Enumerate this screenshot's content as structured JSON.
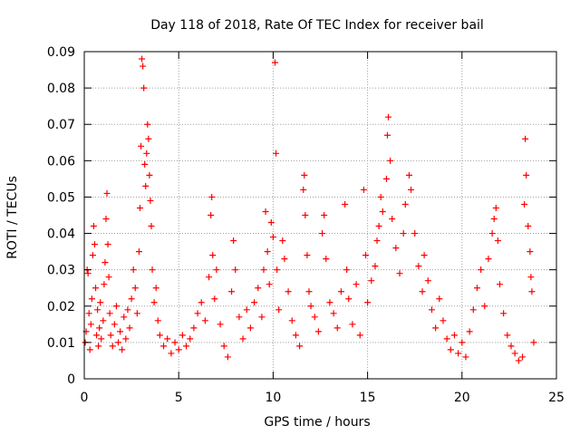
{
  "chart_data": {
    "type": "scatter",
    "title": "Day 118 of 2018, Rate Of TEC Index for receiver bail",
    "xlabel": "GPS time / hours",
    "ylabel": "ROTI / TECUs",
    "xlim": [
      0,
      25
    ],
    "ylim": [
      0,
      0.09
    ],
    "xticks": [
      0,
      5,
      10,
      15,
      20,
      25
    ],
    "xtick_labels": [
      "0",
      "5",
      "10",
      "15",
      "20",
      "25"
    ],
    "yticks": [
      0,
      0.01,
      0.02,
      0.03,
      0.04,
      0.05,
      0.06,
      0.07,
      0.08,
      0.09
    ],
    "ytick_labels": [
      "0",
      "0.01",
      "0.02",
      "0.03",
      "0.04",
      "0.05",
      "0.06",
      "0.07",
      "0.08",
      "0.09"
    ],
    "grid": true,
    "marker": "+",
    "color": "#ff0000",
    "series": [
      {
        "name": "ROTI",
        "points": [
          [
            0.05,
            0.01
          ],
          [
            0.1,
            0.013
          ],
          [
            0.15,
            0.03
          ],
          [
            0.2,
            0.029
          ],
          [
            0.25,
            0.018
          ],
          [
            0.3,
            0.008
          ],
          [
            0.35,
            0.015
          ],
          [
            0.4,
            0.022
          ],
          [
            0.45,
            0.034
          ],
          [
            0.5,
            0.042
          ],
          [
            0.55,
            0.037
          ],
          [
            0.6,
            0.025
          ],
          [
            0.65,
            0.012
          ],
          [
            0.7,
            0.019
          ],
          [
            0.75,
            0.009
          ],
          [
            0.8,
            0.014
          ],
          [
            0.85,
            0.021
          ],
          [
            0.9,
            0.011
          ],
          [
            1.0,
            0.016
          ],
          [
            1.05,
            0.026
          ],
          [
            1.1,
            0.032
          ],
          [
            1.15,
            0.044
          ],
          [
            1.2,
            0.051
          ],
          [
            1.25,
            0.037
          ],
          [
            1.3,
            0.028
          ],
          [
            1.35,
            0.018
          ],
          [
            1.4,
            0.012
          ],
          [
            1.5,
            0.009
          ],
          [
            1.6,
            0.015
          ],
          [
            1.7,
            0.02
          ],
          [
            1.8,
            0.01
          ],
          [
            1.9,
            0.013
          ],
          [
            2.0,
            0.008
          ],
          [
            2.1,
            0.017
          ],
          [
            2.2,
            0.011
          ],
          [
            2.3,
            0.019
          ],
          [
            2.4,
            0.014
          ],
          [
            2.5,
            0.022
          ],
          [
            2.6,
            0.03
          ],
          [
            2.7,
            0.025
          ],
          [
            2.8,
            0.018
          ],
          [
            2.9,
            0.035
          ],
          [
            2.95,
            0.047
          ],
          [
            3.0,
            0.064
          ],
          [
            3.05,
            0.088
          ],
          [
            3.1,
            0.086
          ],
          [
            3.15,
            0.08
          ],
          [
            3.2,
            0.059
          ],
          [
            3.25,
            0.053
          ],
          [
            3.3,
            0.062
          ],
          [
            3.35,
            0.07
          ],
          [
            3.4,
            0.066
          ],
          [
            3.45,
            0.056
          ],
          [
            3.5,
            0.049
          ],
          [
            3.55,
            0.042
          ],
          [
            3.6,
            0.03
          ],
          [
            3.7,
            0.021
          ],
          [
            3.8,
            0.025
          ],
          [
            3.9,
            0.016
          ],
          [
            4.0,
            0.012
          ],
          [
            4.2,
            0.009
          ],
          [
            4.4,
            0.011
          ],
          [
            4.6,
            0.007
          ],
          [
            4.8,
            0.01
          ],
          [
            5.0,
            0.008
          ],
          [
            5.2,
            0.012
          ],
          [
            5.4,
            0.009
          ],
          [
            5.6,
            0.011
          ],
          [
            5.8,
            0.014
          ],
          [
            6.0,
            0.018
          ],
          [
            6.2,
            0.021
          ],
          [
            6.4,
            0.016
          ],
          [
            6.6,
            0.028
          ],
          [
            6.7,
            0.045
          ],
          [
            6.75,
            0.05
          ],
          [
            6.8,
            0.034
          ],
          [
            6.9,
            0.022
          ],
          [
            7.0,
            0.03
          ],
          [
            7.2,
            0.015
          ],
          [
            7.4,
            0.009
          ],
          [
            7.6,
            0.006
          ],
          [
            7.8,
            0.024
          ],
          [
            7.9,
            0.038
          ],
          [
            8.0,
            0.03
          ],
          [
            8.2,
            0.017
          ],
          [
            8.4,
            0.011
          ],
          [
            8.6,
            0.019
          ],
          [
            8.8,
            0.014
          ],
          [
            9.0,
            0.021
          ],
          [
            9.2,
            0.025
          ],
          [
            9.4,
            0.017
          ],
          [
            9.5,
            0.03
          ],
          [
            9.6,
            0.046
          ],
          [
            9.7,
            0.035
          ],
          [
            9.8,
            0.026
          ],
          [
            9.9,
            0.043
          ],
          [
            10.0,
            0.039
          ],
          [
            10.1,
            0.087
          ],
          [
            10.15,
            0.062
          ],
          [
            10.2,
            0.03
          ],
          [
            10.3,
            0.019
          ],
          [
            10.5,
            0.038
          ],
          [
            10.6,
            0.033
          ],
          [
            10.8,
            0.024
          ],
          [
            11.0,
            0.016
          ],
          [
            11.2,
            0.012
          ],
          [
            11.4,
            0.009
          ],
          [
            11.6,
            0.052
          ],
          [
            11.65,
            0.056
          ],
          [
            11.7,
            0.045
          ],
          [
            11.8,
            0.034
          ],
          [
            11.9,
            0.024
          ],
          [
            12.0,
            0.02
          ],
          [
            12.2,
            0.017
          ],
          [
            12.4,
            0.013
          ],
          [
            12.6,
            0.04
          ],
          [
            12.7,
            0.045
          ],
          [
            12.8,
            0.033
          ],
          [
            13.0,
            0.021
          ],
          [
            13.2,
            0.018
          ],
          [
            13.4,
            0.014
          ],
          [
            13.6,
            0.024
          ],
          [
            13.8,
            0.048
          ],
          [
            13.9,
            0.03
          ],
          [
            14.0,
            0.022
          ],
          [
            14.2,
            0.015
          ],
          [
            14.4,
            0.026
          ],
          [
            14.6,
            0.012
          ],
          [
            14.8,
            0.052
          ],
          [
            14.9,
            0.034
          ],
          [
            15.0,
            0.021
          ],
          [
            15.2,
            0.027
          ],
          [
            15.4,
            0.031
          ],
          [
            15.5,
            0.038
          ],
          [
            15.6,
            0.042
          ],
          [
            15.7,
            0.05
          ],
          [
            15.8,
            0.046
          ],
          [
            16.0,
            0.055
          ],
          [
            16.05,
            0.067
          ],
          [
            16.1,
            0.072
          ],
          [
            16.2,
            0.06
          ],
          [
            16.3,
            0.044
          ],
          [
            16.5,
            0.036
          ],
          [
            16.7,
            0.029
          ],
          [
            16.9,
            0.04
          ],
          [
            17.0,
            0.048
          ],
          [
            17.2,
            0.056
          ],
          [
            17.3,
            0.052
          ],
          [
            17.5,
            0.04
          ],
          [
            17.7,
            0.031
          ],
          [
            17.9,
            0.024
          ],
          [
            18.0,
            0.034
          ],
          [
            18.2,
            0.027
          ],
          [
            18.4,
            0.019
          ],
          [
            18.6,
            0.014
          ],
          [
            18.8,
            0.022
          ],
          [
            19.0,
            0.016
          ],
          [
            19.2,
            0.011
          ],
          [
            19.4,
            0.008
          ],
          [
            19.6,
            0.012
          ],
          [
            19.8,
            0.007
          ],
          [
            20.0,
            0.01
          ],
          [
            20.2,
            0.006
          ],
          [
            20.4,
            0.013
          ],
          [
            20.6,
            0.019
          ],
          [
            20.8,
            0.025
          ],
          [
            21.0,
            0.03
          ],
          [
            21.2,
            0.02
          ],
          [
            21.4,
            0.033
          ],
          [
            21.6,
            0.04
          ],
          [
            21.7,
            0.044
          ],
          [
            21.8,
            0.047
          ],
          [
            21.9,
            0.038
          ],
          [
            22.0,
            0.026
          ],
          [
            22.2,
            0.018
          ],
          [
            22.4,
            0.012
          ],
          [
            22.6,
            0.009
          ],
          [
            22.8,
            0.007
          ],
          [
            23.0,
            0.005
          ],
          [
            23.2,
            0.006
          ],
          [
            23.3,
            0.048
          ],
          [
            23.35,
            0.066
          ],
          [
            23.4,
            0.056
          ],
          [
            23.5,
            0.042
          ],
          [
            23.6,
            0.035
          ],
          [
            23.65,
            0.028
          ],
          [
            23.7,
            0.024
          ],
          [
            23.8,
            0.01
          ]
        ]
      }
    ]
  }
}
